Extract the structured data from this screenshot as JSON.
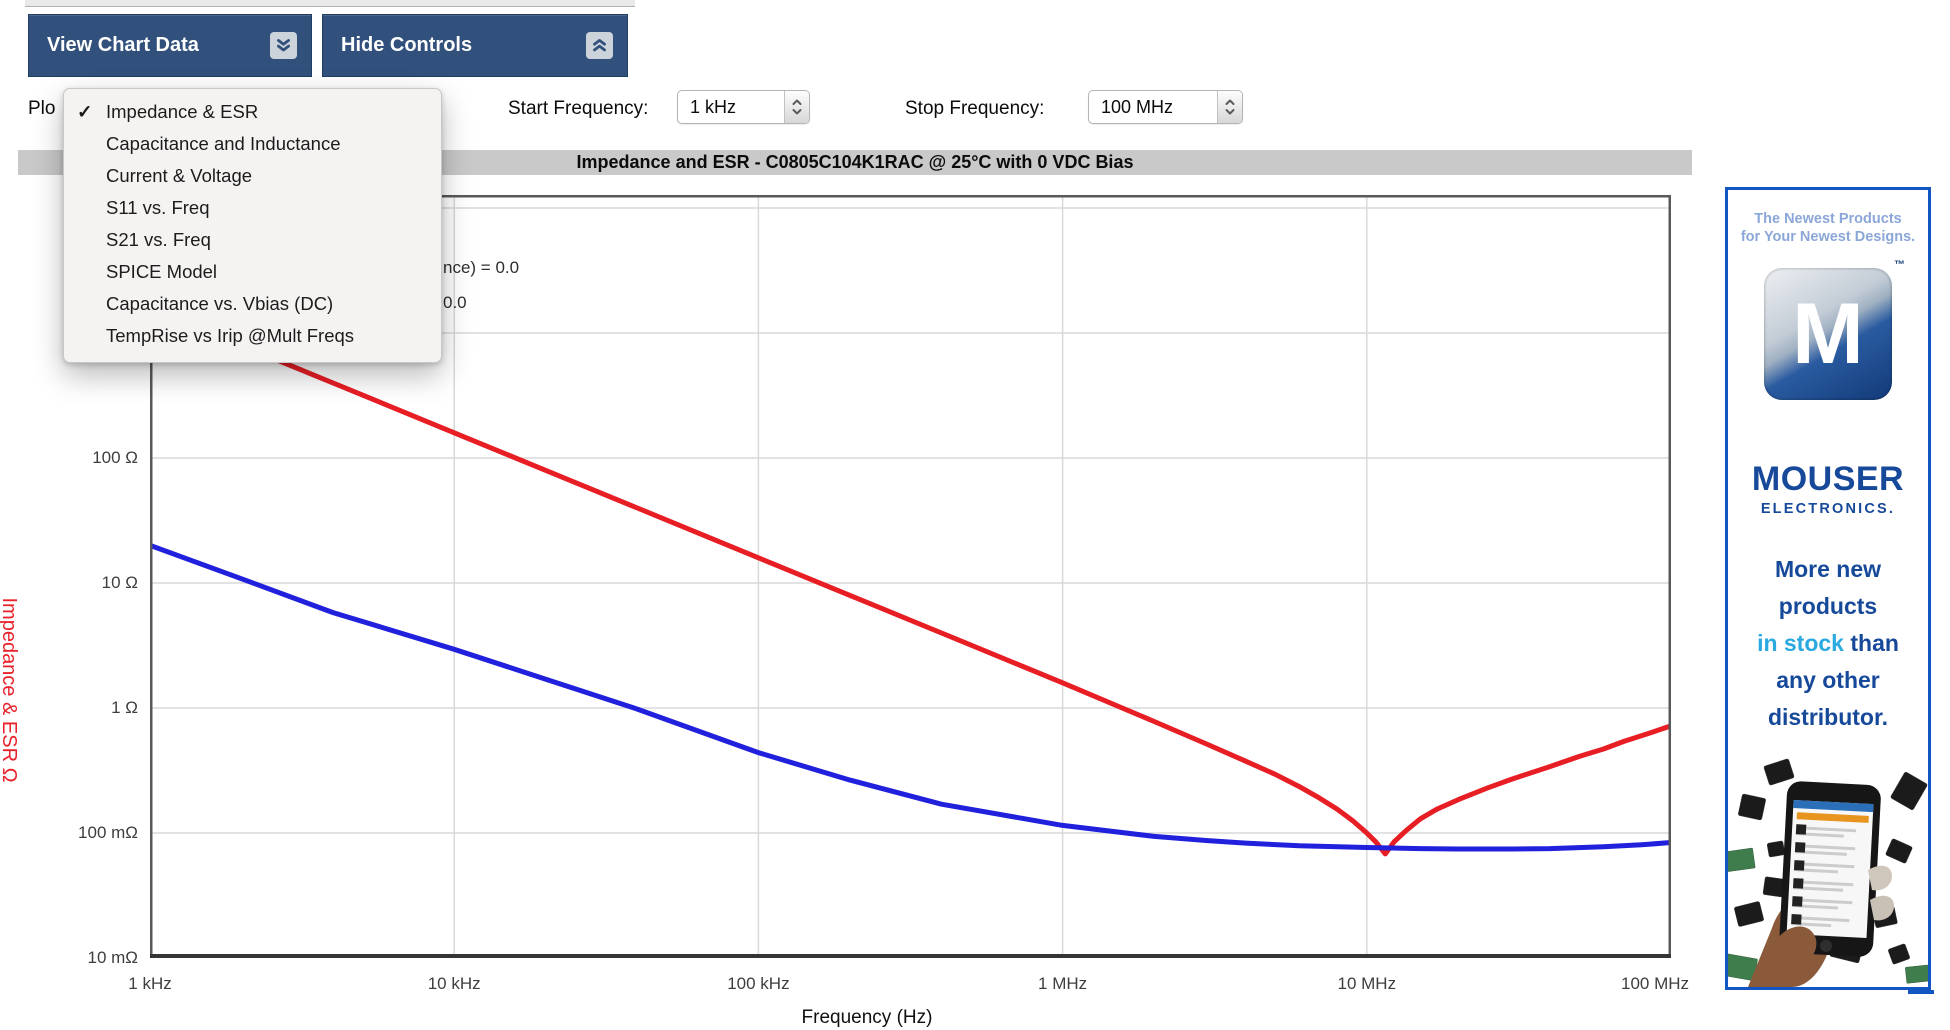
{
  "toolbar": {
    "view_chart_data_label": "View Chart Data",
    "hide_controls_label": "Hide Controls"
  },
  "controls": {
    "plot_label_visible": "Plo",
    "start_frequency_label": "Start Frequency:",
    "start_frequency_value": "1 kHz",
    "stop_frequency_label": "Stop Frequency:",
    "stop_frequency_value": "100 MHz"
  },
  "plot_menu": {
    "checkmark": "✓",
    "items": [
      {
        "label": "Impedance & ESR",
        "checked": true
      },
      {
        "label": "Capacitance and Inductance",
        "checked": false
      },
      {
        "label": "Current & Voltage",
        "checked": false
      },
      {
        "label": "S11 vs. Freq",
        "checked": false
      },
      {
        "label": "S21 vs. Freq",
        "checked": false
      },
      {
        "label": "SPICE Model",
        "checked": false
      },
      {
        "label": "Capacitance vs. Vbias (DC)",
        "checked": false
      },
      {
        "label": "TempRise vs Irip @Mult Freqs",
        "checked": false
      }
    ]
  },
  "chart": {
    "title": "Impedance and ESR - C0805C104K1RAC @ 25°C with 0 VDC Bias",
    "annotation_fragments": [
      "nce) = 0.0",
      "0.0"
    ]
  },
  "chart_data": {
    "type": "line",
    "title": "Impedance and ESR - C0805C104K1RAC @ 25°C with 0 VDC Bias",
    "xlabel": "Frequency (Hz)",
    "ylabel": "Impedance & ESR Ω",
    "x_scale": "log",
    "y_scale": "log",
    "xlim": [
      1000,
      100000000
    ],
    "ylim": [
      0.01,
      12700
    ],
    "grid": true,
    "grid_color": "#d9d9d9",
    "x_ticks": [
      {
        "value": 1000,
        "label": "1 kHz"
      },
      {
        "value": 10000,
        "label": "10 kHz"
      },
      {
        "value": 100000,
        "label": "100 kHz"
      },
      {
        "value": 1000000,
        "label": "1 MHz"
      },
      {
        "value": 10000000,
        "label": "10 MHz"
      },
      {
        "value": 100000000,
        "label": "100 MHz"
      }
    ],
    "y_ticks": [
      {
        "value": 100,
        "label": "100 Ω"
      },
      {
        "value": 10,
        "label": "10 Ω"
      },
      {
        "value": 1,
        "label": "1 Ω"
      },
      {
        "value": 0.1,
        "label": "100 mΩ"
      },
      {
        "value": 0.01,
        "label": "10 mΩ"
      }
    ],
    "grid_x_values": [
      10000,
      100000,
      1000000,
      10000000
    ],
    "grid_y_values": [
      10000,
      1000,
      100,
      10,
      1,
      0.1
    ],
    "series": [
      {
        "name": "Impedance",
        "color": "#e81e25",
        "stroke_width": 5,
        "points": [
          [
            1000,
            1591
          ],
          [
            2000,
            796
          ],
          [
            4000,
            398
          ],
          [
            10000,
            159
          ],
          [
            20000,
            79.6
          ],
          [
            40000,
            39.8
          ],
          [
            100000,
            15.9
          ],
          [
            200000,
            7.96
          ],
          [
            400000,
            3.98
          ],
          [
            1000000,
            1.59
          ],
          [
            2000000,
            0.78
          ],
          [
            3000000,
            0.51
          ],
          [
            4000000,
            0.375
          ],
          [
            5000000,
            0.295
          ],
          [
            6000000,
            0.235
          ],
          [
            7000000,
            0.19
          ],
          [
            8000000,
            0.155
          ],
          [
            9000000,
            0.125
          ],
          [
            10000000,
            0.1
          ],
          [
            10700000,
            0.085
          ],
          [
            11500000,
            0.068
          ],
          [
            12300000,
            0.085
          ],
          [
            13500000,
            0.105
          ],
          [
            15000000,
            0.13
          ],
          [
            17000000,
            0.155
          ],
          [
            20000000,
            0.185
          ],
          [
            25000000,
            0.23
          ],
          [
            30000000,
            0.27
          ],
          [
            40000000,
            0.34
          ],
          [
            50000000,
            0.41
          ],
          [
            60000000,
            0.47
          ],
          [
            70000000,
            0.54
          ],
          [
            85000000,
            0.63
          ],
          [
            100000000,
            0.72
          ]
        ]
      },
      {
        "name": "ESR",
        "color": "#2020dd",
        "stroke_width": 5,
        "points": [
          [
            1000,
            20
          ],
          [
            2000,
            10.8
          ],
          [
            4000,
            5.8
          ],
          [
            10000,
            2.95
          ],
          [
            20000,
            1.7
          ],
          [
            40000,
            0.98
          ],
          [
            100000,
            0.44
          ],
          [
            200000,
            0.265
          ],
          [
            400000,
            0.17
          ],
          [
            1000000,
            0.115
          ],
          [
            2000000,
            0.094
          ],
          [
            3000000,
            0.087
          ],
          [
            4000000,
            0.083
          ],
          [
            6000000,
            0.079
          ],
          [
            10000000,
            0.0765
          ],
          [
            15000000,
            0.075
          ],
          [
            20000000,
            0.0745
          ],
          [
            30000000,
            0.0745
          ],
          [
            40000000,
            0.075
          ],
          [
            60000000,
            0.0775
          ],
          [
            80000000,
            0.0805
          ],
          [
            100000000,
            0.084
          ]
        ]
      }
    ]
  },
  "ad": {
    "tagline": [
      "The Newest Products",
      "for Your Newest Designs."
    ],
    "logo_letter": "M",
    "logo_tm": "™",
    "name": "MOUSER",
    "subname": "ELECTRONICS.",
    "promo_lines": [
      [
        {
          "t": "More new"
        }
      ],
      [
        {
          "t": "products"
        }
      ],
      [
        {
          "t": "in stock",
          "hl": true
        },
        {
          "t": " than"
        }
      ],
      [
        {
          "t": "any other"
        }
      ],
      [
        {
          "t": "distributor."
        }
      ]
    ],
    "accent_blue": "#1156c3",
    "brand_navy": "#17499a",
    "highlight_cyan": "#2aa9e0"
  }
}
